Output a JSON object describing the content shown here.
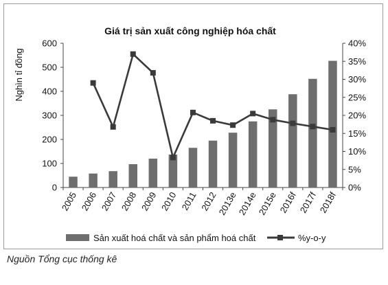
{
  "chart_data": {
    "type": "bar+line",
    "title": "Giá trị sản xuất công nghiệp hóa chất",
    "ylabel": "Nghìn tỉ đồng",
    "y2label": "",
    "categories": [
      "2005",
      "2006",
      "2007",
      "2008",
      "2009",
      "2010",
      "2011",
      "2012",
      "2013e",
      "2014e",
      "2015e",
      "2016f",
      "2017f",
      "2018f"
    ],
    "ylim": [
      0,
      600
    ],
    "yticks": [
      "0",
      "100",
      "200",
      "300",
      "400",
      "500",
      "600"
    ],
    "y2lim": [
      0,
      40
    ],
    "y2ticks": [
      "0%",
      "5%",
      "10%",
      "15%",
      "20%",
      "25%",
      "30%",
      "35%",
      "40%"
    ],
    "series": [
      {
        "name": "Sản xuất hoá chất và sản phẩm hoá chất",
        "kind": "bar",
        "axis": "left",
        "color": "#6e6e6e",
        "values": [
          45,
          58,
          68,
          97,
          120,
          137,
          165,
          195,
          228,
          275,
          325,
          388,
          452,
          527
        ]
      },
      {
        "name": "%y-o-y",
        "kind": "line",
        "axis": "right",
        "color": "#3a3a3a",
        "values": [
          null,
          29.0,
          16.8,
          37.0,
          31.8,
          8.3,
          20.8,
          18.5,
          17.3,
          20.5,
          18.8,
          17.8,
          16.9,
          16.0
        ]
      }
    ],
    "grid": false,
    "legend": "bottom"
  },
  "source_note": "Nguồn Tổng cục thống kê"
}
